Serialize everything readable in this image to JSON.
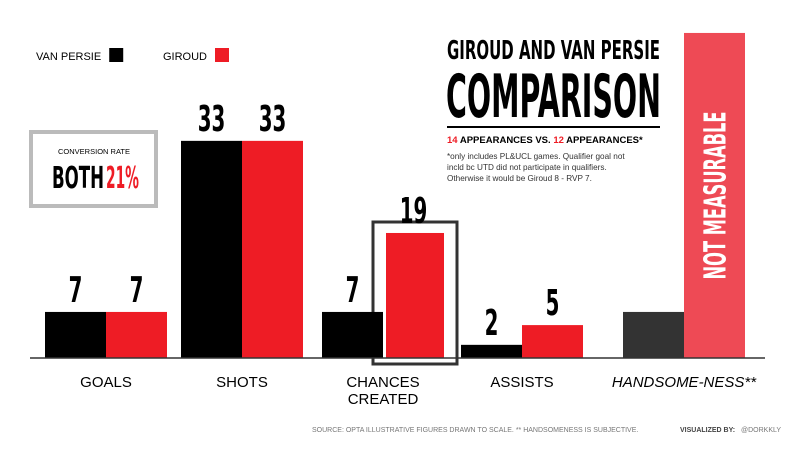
{
  "chart_data": {
    "type": "bar",
    "title": "GIROUD AND VAN PERSIE",
    "headline": "COMPARISON",
    "subtitle": {
      "first_count": "14",
      "first_text": " APPEARANCES VS. ",
      "second_count": "12",
      "second_text": " APPEARANCES*"
    },
    "note": [
      "*only includes PL&UCL games. Qualifier goal not",
      "incld bc UTD did not participate in qualifiers.",
      "Otherwise it would be Giroud 8 - RVP 7."
    ],
    "callout": {
      "heading": "CONVERSION RATE",
      "label": "BOTH",
      "value": "21%"
    },
    "categories": [
      "GOALS",
      "SHOTS",
      "CHANCES CREATED",
      "ASSISTS",
      "HANDSOME-NESS**"
    ],
    "series": [
      {
        "name": "VAN PERSIE",
        "color": "#000000",
        "last_color": "#333333",
        "values": [
          7,
          33,
          7,
          2,
          7
        ],
        "value_labels": [
          "7",
          "33",
          "7",
          "2",
          null
        ]
      },
      {
        "name": "GIROUD",
        "color": "#ee1c25",
        "last_color": "#ee4a55",
        "values": [
          7,
          33,
          19,
          5,
          49.4
        ],
        "value_labels": [
          "7",
          "33",
          "19",
          "5",
          null
        ]
      }
    ],
    "annotation": "NOT MEASURABLE",
    "ylim": [
      0,
      50
    ],
    "footer": {
      "source": "SOURCE: OPTA   ILLUSTRATIVE FIGURES DRAWN TO SCALE. ** HANDSOMENESS IS SUBJECTIVE.",
      "credit_label": "VISUALIZED BY:",
      "credit": "@DORKKLY"
    }
  }
}
